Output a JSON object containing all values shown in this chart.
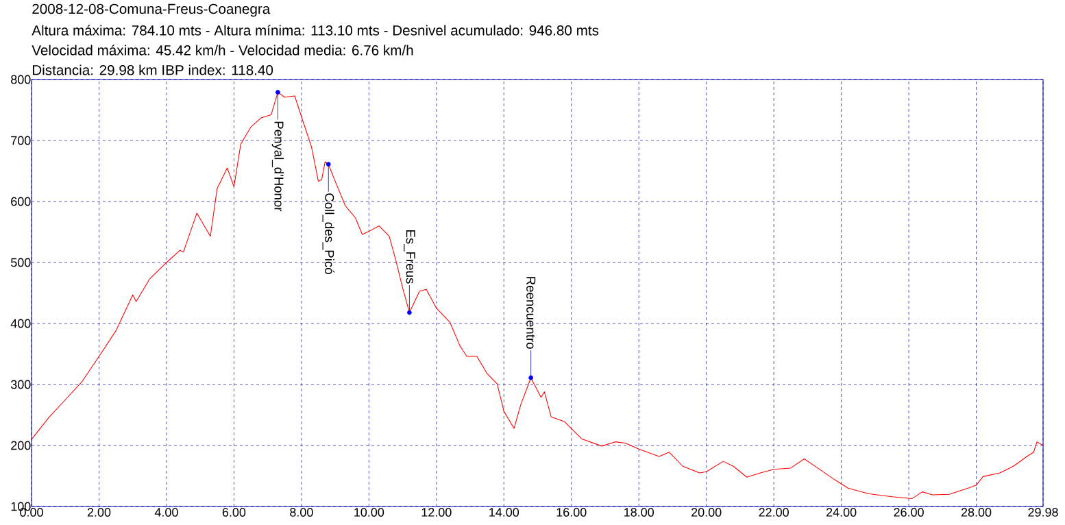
{
  "chart_data": {
    "type": "line",
    "title": "2008-12-08-Comuna-Freus-Coanegra",
    "annotations": [
      "Altura máxima: 784.10 mts - Altura mínima: 113.10 mts - Desnivel acumulado: 946.80 mts",
      "Velocidad máxima: 45.42 km/h - Velocidad media: 6.76 km/h",
      "Distancia: 29.98 km IBP index: 118.40",
      {
        "text": "Penyal_d'Honor",
        "x": 7.3,
        "y": 779
      },
      {
        "text": "Coll_des_Picó",
        "x": 8.8,
        "y": 661
      },
      {
        "text": "Es_Freus",
        "x": 11.2,
        "y": 418
      },
      {
        "text": "Reencuentro",
        "x": 14.8,
        "y": 311
      }
    ],
    "x": [
      0,
      0.5,
      1.0,
      1.5,
      2.0,
      2.5,
      3.0,
      3.1,
      3.5,
      4.0,
      4.4,
      4.5,
      4.9,
      5.3,
      5.5,
      5.8,
      6.0,
      6.2,
      6.5,
      6.8,
      7.1,
      7.3,
      7.5,
      7.8,
      8.0,
      8.3,
      8.5,
      8.6,
      8.7,
      8.8,
      9.0,
      9.3,
      9.6,
      9.8,
      10.0,
      10.3,
      10.6,
      10.8,
      11.0,
      11.2,
      11.5,
      11.7,
      12.0,
      12.4,
      12.7,
      12.9,
      13.2,
      13.5,
      13.8,
      14.0,
      14.3,
      14.5,
      14.8,
      15.1,
      15.2,
      15.4,
      15.8,
      16.3,
      16.9,
      17.3,
      17.6,
      18.0,
      18.6,
      18.9,
      19.3,
      19.8,
      20.0,
      20.5,
      20.8,
      21.2,
      21.6,
      22.0,
      22.5,
      22.9,
      23.3,
      23.8,
      24.2,
      24.8,
      25.5,
      26.1,
      26.4,
      26.7,
      27.2,
      27.8,
      28.0,
      28.2,
      28.7,
      29.1,
      29.5,
      29.7,
      29.8,
      29.98
    ],
    "series": [
      {
        "color": "#ff0000",
        "values": [
          210,
          245,
          275,
          305,
          346,
          388,
          447,
          436,
          473,
          500,
          520,
          517,
          581,
          543,
          621,
          655,
          624,
          694,
          722,
          737,
          742,
          779,
          771,
          773,
          739,
          689,
          633,
          636,
          665,
          661,
          633,
          593,
          573,
          546,
          551,
          560,
          543,
          503,
          458,
          418,
          453,
          456,
          425,
          402,
          363,
          346,
          346,
          318,
          301,
          256,
          228,
          267,
          311,
          279,
          288,
          247,
          239,
          211,
          199,
          206,
          204,
          194,
          182,
          189,
          166,
          155,
          157,
          174,
          166,
          148,
          155,
          161,
          163,
          178,
          163,
          144,
          130,
          121,
          116,
          113,
          124,
          119,
          120,
          131,
          135,
          149,
          155,
          166,
          182,
          189,
          206,
          200
        ]
      }
    ],
    "xlim": [
      0,
      29.98
    ],
    "ylim": [
      100,
      800
    ],
    "xticks": [
      {
        "value": 0,
        "label": "0.00"
      },
      {
        "value": 2,
        "label": "2.00"
      },
      {
        "value": 4,
        "label": "4.00"
      },
      {
        "value": 6,
        "label": "6.00"
      },
      {
        "value": 8,
        "label": "8.00"
      },
      {
        "value": 10,
        "label": "10.00"
      },
      {
        "value": 12,
        "label": "12.00"
      },
      {
        "value": 14,
        "label": "14.00"
      },
      {
        "value": 16,
        "label": "16.00"
      },
      {
        "value": 18,
        "label": "18.00"
      },
      {
        "value": 20,
        "label": "20.00"
      },
      {
        "value": 22,
        "label": "22.00"
      },
      {
        "value": 24,
        "label": "24.00"
      },
      {
        "value": 26,
        "label": "26.00"
      },
      {
        "value": 28,
        "label": "28.00"
      },
      {
        "value": 29.98,
        "label": "29.98"
      }
    ],
    "yticks": [
      100,
      200,
      300,
      400,
      500,
      600,
      700,
      800
    ],
    "grid": true
  }
}
